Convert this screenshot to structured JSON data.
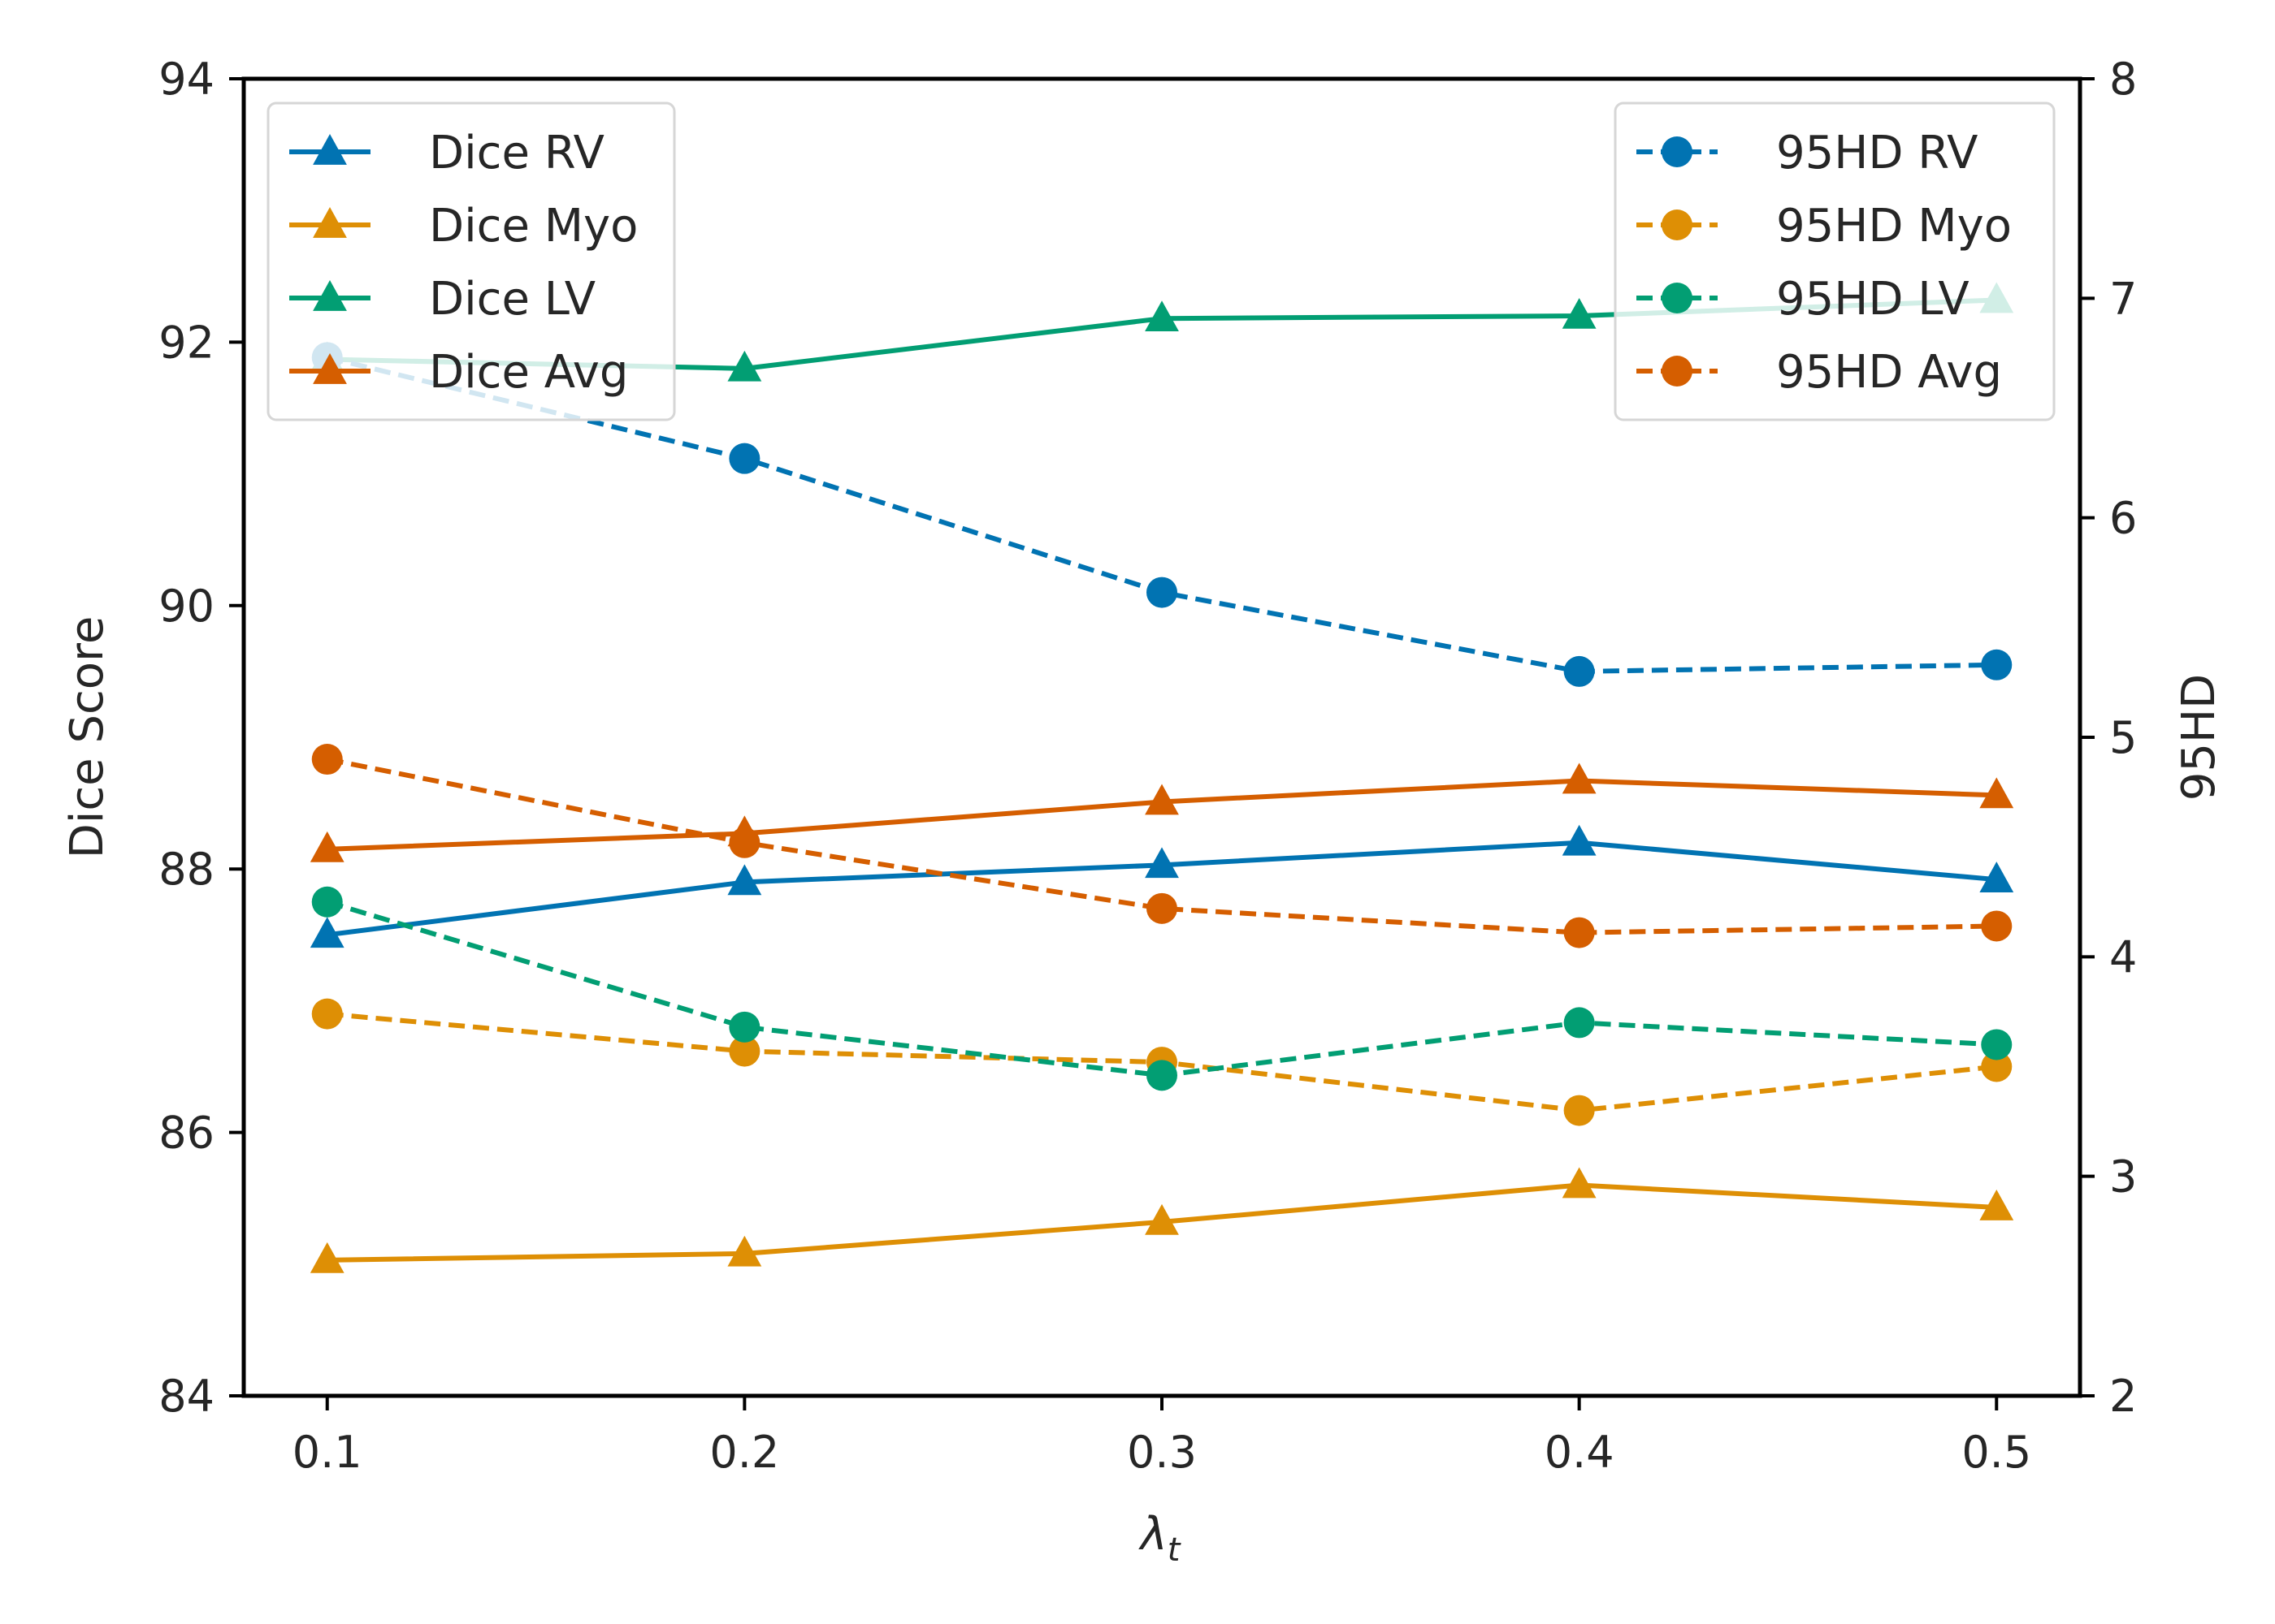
{
  "chart_data": {
    "type": "line",
    "title": "",
    "xlabel": "λ",
    "xlabel_subscript": "t",
    "ylabel": "Dice Score",
    "y2label": "95HD",
    "x": [
      0.1,
      0.2,
      0.3,
      0.4,
      0.5
    ],
    "x_tick_labels": [
      "0.1",
      "0.2",
      "0.3",
      "0.4",
      "0.5"
    ],
    "xlim": [
      0.08,
      0.52
    ],
    "ylim": [
      84,
      94
    ],
    "y_ticks": [
      84,
      86,
      88,
      90,
      92,
      94
    ],
    "y_tick_labels": [
      "84",
      "86",
      "88",
      "90",
      "92",
      "94"
    ],
    "y2lim": [
      2,
      8
    ],
    "y2_ticks": [
      2,
      3,
      4,
      5,
      6,
      7,
      8
    ],
    "y2_tick_labels": [
      "2",
      "3",
      "4",
      "5",
      "6",
      "7",
      "8"
    ],
    "grid": false,
    "series": [
      {
        "name": "Dice RV",
        "axis": "left",
        "marker": "triangle",
        "linestyle": "solid",
        "color": "#0173b2",
        "values": [
          87.5,
          87.9,
          88.03,
          88.2,
          87.92
        ]
      },
      {
        "name": "Dice Myo",
        "axis": "left",
        "marker": "triangle",
        "linestyle": "solid",
        "color": "#de8f05",
        "values": [
          85.03,
          85.08,
          85.32,
          85.6,
          85.43
        ]
      },
      {
        "name": "Dice LV",
        "axis": "left",
        "marker": "triangle",
        "linestyle": "solid",
        "color": "#029e73",
        "values": [
          91.87,
          91.8,
          92.18,
          92.2,
          92.32
        ]
      },
      {
        "name": "Dice Avg",
        "axis": "left",
        "marker": "triangle",
        "linestyle": "solid",
        "color": "#d55e00",
        "values": [
          88.15,
          88.27,
          88.51,
          88.67,
          88.56
        ]
      },
      {
        "name": "95HD RV",
        "axis": "right",
        "marker": "circle",
        "linestyle": "dashed",
        "color": "#0173b2",
        "values": [
          6.73,
          6.27,
          5.66,
          5.3,
          5.33
        ]
      },
      {
        "name": "95HD Myo",
        "axis": "right",
        "marker": "circle",
        "linestyle": "dashed",
        "color": "#de8f05",
        "values": [
          3.74,
          3.57,
          3.52,
          3.3,
          3.5
        ]
      },
      {
        "name": "95HD LV",
        "axis": "right",
        "marker": "circle",
        "linestyle": "dashed",
        "color": "#029e73",
        "values": [
          4.25,
          3.68,
          3.46,
          3.7,
          3.6
        ]
      },
      {
        "name": "95HD Avg",
        "axis": "right",
        "marker": "circle",
        "linestyle": "dashed",
        "color": "#d55e00",
        "values": [
          4.9,
          4.52,
          4.22,
          4.11,
          4.14
        ]
      }
    ],
    "legends": [
      {
        "placement": "top-left",
        "entries": [
          "Dice RV",
          "Dice Myo",
          "Dice LV",
          "Dice Avg"
        ]
      },
      {
        "placement": "top-right",
        "entries": [
          "95HD RV",
          "95HD Myo",
          "95HD LV",
          "95HD Avg"
        ]
      }
    ]
  }
}
